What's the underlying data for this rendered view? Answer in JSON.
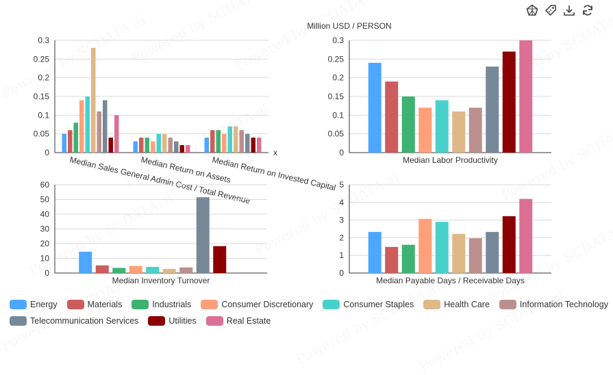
{
  "header": {
    "unit_label": "Million USD / PERSON"
  },
  "watermark": "Powered by SCDATA.ai",
  "toolbar": [
    {
      "name": "chart-type-icon"
    },
    {
      "name": "tag-icon"
    },
    {
      "name": "download-icon"
    },
    {
      "name": "refresh-icon"
    }
  ],
  "sectors": [
    {
      "name": "Energy",
      "color": "#4da6ff"
    },
    {
      "name": "Materials",
      "color": "#cd5c5c"
    },
    {
      "name": "Industrials",
      "color": "#3cb371"
    },
    {
      "name": "Consumer Discretionary",
      "color": "#ffa07a"
    },
    {
      "name": "Consumer Staples",
      "color": "#48d1cc"
    },
    {
      "name": "Health Care",
      "color": "#deb887"
    },
    {
      "name": "Information Technology",
      "color": "#bc8f8f"
    },
    {
      "name": "Telecommunication Services",
      "color": "#778899"
    },
    {
      "name": "Utilities",
      "color": "#8b0000"
    },
    {
      "name": "Real Estate",
      "color": "#db7093"
    }
  ],
  "chart_data": [
    {
      "type": "bar",
      "xlabel": "x",
      "categories": [
        "Median Sales General Admin Cost / Total Revenue",
        "Median Return on Assets",
        "Median Return on Invested Capital"
      ],
      "ylim": [
        0,
        0.3
      ],
      "yticks": [
        "0",
        "0.05",
        "0.1",
        "0.15",
        "0.2",
        "0.25",
        "0.3"
      ],
      "series": [
        {
          "name": "Energy",
          "values": [
            0.05,
            0.03,
            0.04
          ]
        },
        {
          "name": "Materials",
          "values": [
            0.06,
            0.04,
            0.06
          ]
        },
        {
          "name": "Industrials",
          "values": [
            0.08,
            0.04,
            0.06
          ]
        },
        {
          "name": "Consumer Discretionary",
          "values": [
            0.14,
            0.03,
            0.05
          ]
        },
        {
          "name": "Consumer Staples",
          "values": [
            0.15,
            0.05,
            0.07
          ]
        },
        {
          "name": "Health Care",
          "values": [
            0.28,
            0.05,
            0.07
          ]
        },
        {
          "name": "Information Technology",
          "values": [
            0.11,
            0.04,
            0.06
          ]
        },
        {
          "name": "Telecommunication Services",
          "values": [
            0.14,
            0.03,
            0.05
          ]
        },
        {
          "name": "Utilities",
          "values": [
            0.04,
            0.02,
            0.04
          ]
        },
        {
          "name": "Real Estate",
          "values": [
            0.1,
            0.02,
            0.04
          ]
        }
      ]
    },
    {
      "type": "bar",
      "categories": [
        "Median Labor Productivity"
      ],
      "ylim": [
        0,
        0.3
      ],
      "yticks": [
        "0",
        "0.05",
        "0.1",
        "0.15",
        "0.2",
        "0.25",
        "0.3"
      ],
      "series": [
        {
          "name": "Energy",
          "values": [
            0.24
          ]
        },
        {
          "name": "Materials",
          "values": [
            0.19
          ]
        },
        {
          "name": "Industrials",
          "values": [
            0.15
          ]
        },
        {
          "name": "Consumer Discretionary",
          "values": [
            0.12
          ]
        },
        {
          "name": "Consumer Staples",
          "values": [
            0.14
          ]
        },
        {
          "name": "Health Care",
          "values": [
            0.11
          ]
        },
        {
          "name": "Information Technology",
          "values": [
            0.12
          ]
        },
        {
          "name": "Telecommunication Services",
          "values": [
            0.23
          ]
        },
        {
          "name": "Utilities",
          "values": [
            0.27
          ]
        },
        {
          "name": "Real Estate",
          "values": [
            0.3
          ]
        }
      ]
    },
    {
      "type": "bar",
      "categories": [
        "Median Inventory Turnover"
      ],
      "ylim": [
        0,
        60
      ],
      "yticks": [
        "0",
        "10",
        "20",
        "30",
        "40",
        "50",
        "60"
      ],
      "series": [
        {
          "name": "Energy",
          "values": [
            14.5
          ]
        },
        {
          "name": "Materials",
          "values": [
            5.2
          ]
        },
        {
          "name": "Industrials",
          "values": [
            3.5
          ]
        },
        {
          "name": "Consumer Discretionary",
          "values": [
            4.8
          ]
        },
        {
          "name": "Consumer Staples",
          "values": [
            4.2
          ]
        },
        {
          "name": "Health Care",
          "values": [
            2.8
          ]
        },
        {
          "name": "Information Technology",
          "values": [
            3.8
          ]
        },
        {
          "name": "Telecommunication Services",
          "values": [
            51.5
          ]
        },
        {
          "name": "Utilities",
          "values": [
            18.3
          ]
        },
        {
          "name": "Real Estate",
          "values": [
            0
          ]
        }
      ]
    },
    {
      "type": "bar",
      "categories": [
        "Median Payable Days / Receivable Days"
      ],
      "ylim": [
        0,
        5
      ],
      "yticks": [
        "0",
        "1",
        "2",
        "3",
        "4",
        "5"
      ],
      "series": [
        {
          "name": "Energy",
          "values": [
            2.33
          ]
        },
        {
          "name": "Materials",
          "values": [
            1.48
          ]
        },
        {
          "name": "Industrials",
          "values": [
            1.6
          ]
        },
        {
          "name": "Consumer Discretionary",
          "values": [
            3.07
          ]
        },
        {
          "name": "Consumer Staples",
          "values": [
            2.9
          ]
        },
        {
          "name": "Health Care",
          "values": [
            2.22
          ]
        },
        {
          "name": "Information Technology",
          "values": [
            1.97
          ]
        },
        {
          "name": "Telecommunication Services",
          "values": [
            2.33
          ]
        },
        {
          "name": "Utilities",
          "values": [
            3.22
          ]
        },
        {
          "name": "Real Estate",
          "values": [
            4.2
          ]
        }
      ]
    }
  ]
}
